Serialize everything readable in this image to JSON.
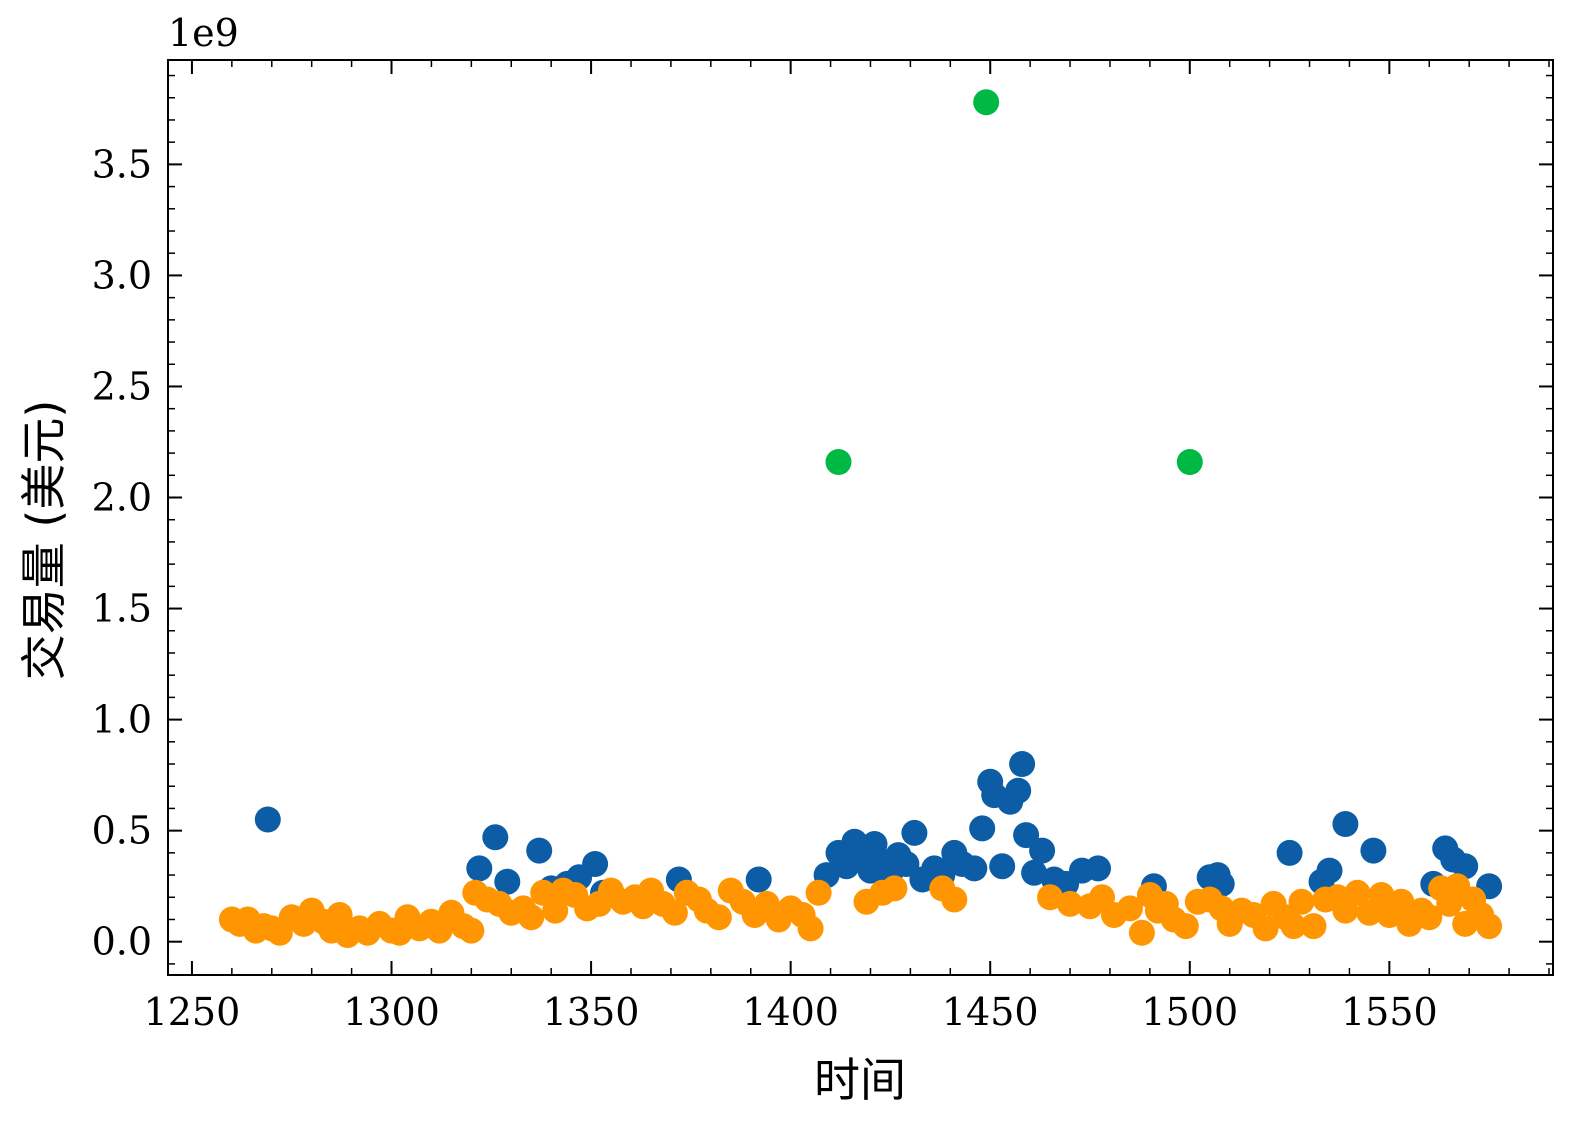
{
  "chart_data": {
    "type": "scatter",
    "title": "",
    "xlabel": "时间",
    "ylabel": "交易量 (美元)",
    "y_multiplier_label": "1e9",
    "xlim": [
      1244,
      1591
    ],
    "ylim": [
      -0.15,
      3.97
    ],
    "x_ticks": [
      1250,
      1300,
      1350,
      1400,
      1450,
      1500,
      1550
    ],
    "x_tick_labels": [
      "1250",
      "1300",
      "1350",
      "1400",
      "1450",
      "1500",
      "1550"
    ],
    "y_ticks": [
      0.0,
      0.5,
      1.0,
      1.5,
      2.0,
      2.5,
      3.0,
      3.5
    ],
    "y_tick_labels": [
      "0.0",
      "0.5",
      "1.0",
      "1.5",
      "2.0",
      "2.5",
      "3.0",
      "3.5"
    ],
    "grid": false,
    "legend": "none",
    "series": [
      {
        "color": "#0C5DA5",
        "points": [
          [
            1269,
            0.55
          ],
          [
            1322,
            0.33
          ],
          [
            1326,
            0.47
          ],
          [
            1329,
            0.27
          ],
          [
            1337,
            0.41
          ],
          [
            1340,
            0.24
          ],
          [
            1344,
            0.26
          ],
          [
            1347,
            0.29
          ],
          [
            1351,
            0.35
          ],
          [
            1353,
            0.22
          ],
          [
            1372,
            0.28
          ],
          [
            1392,
            0.28
          ],
          [
            1409,
            0.3
          ],
          [
            1412,
            0.4
          ],
          [
            1414,
            0.34
          ],
          [
            1416,
            0.45
          ],
          [
            1418,
            0.37
          ],
          [
            1420,
            0.32
          ],
          [
            1421,
            0.44
          ],
          [
            1423,
            0.36
          ],
          [
            1425,
            0.31
          ],
          [
            1427,
            0.39
          ],
          [
            1429,
            0.35
          ],
          [
            1431,
            0.49
          ],
          [
            1433,
            0.28
          ],
          [
            1436,
            0.33
          ],
          [
            1438,
            0.3
          ],
          [
            1441,
            0.4
          ],
          [
            1443,
            0.35
          ],
          [
            1446,
            0.33
          ],
          [
            1448,
            0.51
          ],
          [
            1450,
            0.72
          ],
          [
            1451,
            0.66
          ],
          [
            1453,
            0.34
          ],
          [
            1455,
            0.63
          ],
          [
            1457,
            0.68
          ],
          [
            1458,
            0.8
          ],
          [
            1459,
            0.48
          ],
          [
            1461,
            0.31
          ],
          [
            1463,
            0.41
          ],
          [
            1466,
            0.28
          ],
          [
            1469,
            0.26
          ],
          [
            1473,
            0.32
          ],
          [
            1477,
            0.33
          ],
          [
            1491,
            0.25
          ],
          [
            1505,
            0.29
          ],
          [
            1507,
            0.3
          ],
          [
            1508,
            0.26
          ],
          [
            1525,
            0.4
          ],
          [
            1533,
            0.27
          ],
          [
            1535,
            0.32
          ],
          [
            1539,
            0.53
          ],
          [
            1546,
            0.41
          ],
          [
            1561,
            0.26
          ],
          [
            1564,
            0.42
          ],
          [
            1566,
            0.37
          ],
          [
            1569,
            0.34
          ],
          [
            1575,
            0.25
          ]
        ]
      },
      {
        "color": "#FF9500",
        "points": [
          [
            1260,
            0.1
          ],
          [
            1262,
            0.08
          ],
          [
            1264,
            0.1
          ],
          [
            1266,
            0.05
          ],
          [
            1268,
            0.07
          ],
          [
            1270,
            0.06
          ],
          [
            1272,
            0.04
          ],
          [
            1275,
            0.11
          ],
          [
            1278,
            0.08
          ],
          [
            1280,
            0.14
          ],
          [
            1283,
            0.09
          ],
          [
            1285,
            0.05
          ],
          [
            1287,
            0.12
          ],
          [
            1289,
            0.03
          ],
          [
            1292,
            0.06
          ],
          [
            1294,
            0.04
          ],
          [
            1297,
            0.08
          ],
          [
            1300,
            0.05
          ],
          [
            1302,
            0.04
          ],
          [
            1304,
            0.11
          ],
          [
            1307,
            0.06
          ],
          [
            1310,
            0.09
          ],
          [
            1312,
            0.05
          ],
          [
            1315,
            0.13
          ],
          [
            1318,
            0.07
          ],
          [
            1320,
            0.05
          ],
          [
            1321,
            0.22
          ],
          [
            1324,
            0.19
          ],
          [
            1327,
            0.17
          ],
          [
            1330,
            0.13
          ],
          [
            1333,
            0.15
          ],
          [
            1335,
            0.11
          ],
          [
            1338,
            0.22
          ],
          [
            1341,
            0.14
          ],
          [
            1343,
            0.23
          ],
          [
            1346,
            0.21
          ],
          [
            1349,
            0.15
          ],
          [
            1352,
            0.17
          ],
          [
            1355,
            0.23
          ],
          [
            1358,
            0.18
          ],
          [
            1361,
            0.2
          ],
          [
            1363,
            0.16
          ],
          [
            1365,
            0.23
          ],
          [
            1368,
            0.17
          ],
          [
            1371,
            0.13
          ],
          [
            1374,
            0.22
          ],
          [
            1377,
            0.19
          ],
          [
            1379,
            0.14
          ],
          [
            1382,
            0.11
          ],
          [
            1385,
            0.23
          ],
          [
            1388,
            0.18
          ],
          [
            1391,
            0.12
          ],
          [
            1394,
            0.17
          ],
          [
            1397,
            0.1
          ],
          [
            1400,
            0.15
          ],
          [
            1403,
            0.12
          ],
          [
            1405,
            0.06
          ],
          [
            1407,
            0.22
          ],
          [
            1419,
            0.18
          ],
          [
            1423,
            0.22
          ],
          [
            1426,
            0.24
          ],
          [
            1438,
            0.24
          ],
          [
            1441,
            0.19
          ],
          [
            1465,
            0.2
          ],
          [
            1470,
            0.17
          ],
          [
            1475,
            0.16
          ],
          [
            1478,
            0.2
          ],
          [
            1481,
            0.12
          ],
          [
            1485,
            0.15
          ],
          [
            1488,
            0.04
          ],
          [
            1490,
            0.21
          ],
          [
            1492,
            0.14
          ],
          [
            1494,
            0.17
          ],
          [
            1496,
            0.1
          ],
          [
            1499,
            0.07
          ],
          [
            1502,
            0.18
          ],
          [
            1505,
            0.19
          ],
          [
            1508,
            0.15
          ],
          [
            1510,
            0.08
          ],
          [
            1513,
            0.14
          ],
          [
            1516,
            0.12
          ],
          [
            1519,
            0.06
          ],
          [
            1521,
            0.17
          ],
          [
            1524,
            0.11
          ],
          [
            1526,
            0.07
          ],
          [
            1528,
            0.18
          ],
          [
            1531,
            0.07
          ],
          [
            1534,
            0.19
          ],
          [
            1537,
            0.2
          ],
          [
            1539,
            0.14
          ],
          [
            1542,
            0.22
          ],
          [
            1545,
            0.13
          ],
          [
            1548,
            0.21
          ],
          [
            1550,
            0.12
          ],
          [
            1553,
            0.18
          ],
          [
            1555,
            0.08
          ],
          [
            1558,
            0.14
          ],
          [
            1560,
            0.11
          ],
          [
            1563,
            0.24
          ],
          [
            1565,
            0.17
          ],
          [
            1567,
            0.25
          ],
          [
            1569,
            0.08
          ],
          [
            1571,
            0.19
          ],
          [
            1573,
            0.12
          ],
          [
            1575,
            0.07
          ]
        ]
      },
      {
        "color": "#00B945",
        "points": [
          [
            1412,
            2.16
          ],
          [
            1449,
            3.78
          ],
          [
            1500,
            2.16
          ]
        ]
      }
    ]
  }
}
